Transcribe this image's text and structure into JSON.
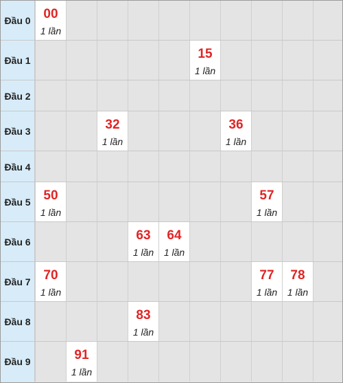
{
  "rows": [
    {
      "label": "Đầu 0",
      "hits": [
        {
          "col": 0,
          "number": "00",
          "count": "1 lần"
        }
      ]
    },
    {
      "label": "Đầu 1",
      "hits": [
        {
          "col": 5,
          "number": "15",
          "count": "1 lần"
        }
      ]
    },
    {
      "label": "Đầu 2",
      "hits": []
    },
    {
      "label": "Đầu 3",
      "hits": [
        {
          "col": 2,
          "number": "32",
          "count": "1 lần"
        },
        {
          "col": 6,
          "number": "36",
          "count": "1 lần"
        }
      ]
    },
    {
      "label": "Đầu 4",
      "hits": []
    },
    {
      "label": "Đầu 5",
      "hits": [
        {
          "col": 0,
          "number": "50",
          "count": "1 lần"
        },
        {
          "col": 7,
          "number": "57",
          "count": "1 lần"
        }
      ]
    },
    {
      "label": "Đầu 6",
      "hits": [
        {
          "col": 3,
          "number": "63",
          "count": "1 lần"
        },
        {
          "col": 4,
          "number": "64",
          "count": "1 lần"
        }
      ]
    },
    {
      "label": "Đầu 7",
      "hits": [
        {
          "col": 0,
          "number": "70",
          "count": "1 lần"
        },
        {
          "col": 7,
          "number": "77",
          "count": "1 lần"
        },
        {
          "col": 8,
          "number": "78",
          "count": "1 lần"
        }
      ]
    },
    {
      "label": "Đầu 8",
      "hits": [
        {
          "col": 3,
          "number": "83",
          "count": "1 lần"
        }
      ]
    },
    {
      "label": "Đầu 9",
      "hits": [
        {
          "col": 1,
          "number": "91",
          "count": "1 lần"
        }
      ]
    }
  ],
  "colors": {
    "number": "#e02424",
    "header_bg": "#d7ecf8",
    "empty_bg": "#e4e4e4",
    "hit_bg": "#ffffff"
  }
}
